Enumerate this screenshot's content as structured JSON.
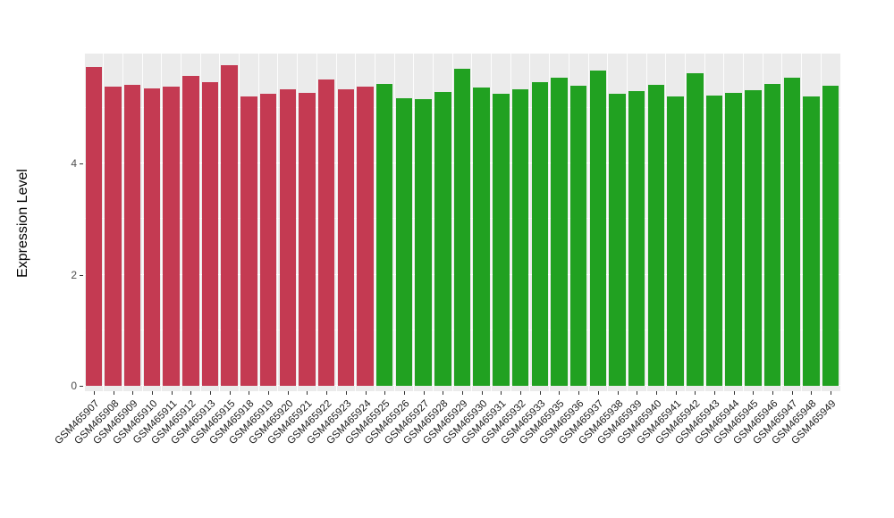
{
  "chart_data": {
    "type": "bar",
    "title": "",
    "xlabel": "",
    "ylabel": "Expression Level",
    "ylim": [
      0,
      5.98
    ],
    "yticks": [
      0,
      2,
      4
    ],
    "yticks_minor": [
      1,
      3,
      5
    ],
    "legend": "none",
    "grid": "on",
    "panel_background": "#EBEBEB",
    "gridline_color": "#FFFFFF",
    "colors": {
      "red": "#C43A52",
      "green": "#21A121"
    },
    "categories": [
      "GSM465907",
      "GSM465908",
      "GSM465909",
      "GSM465910",
      "GSM465911",
      "GSM465912",
      "GSM465913",
      "GSM465915",
      "GSM465918",
      "GSM465919",
      "GSM465920",
      "GSM465921",
      "GSM465922",
      "GSM465923",
      "GSM465924",
      "GSM465925",
      "GSM465926",
      "GSM465927",
      "GSM465928",
      "GSM465929",
      "GSM465930",
      "GSM465931",
      "GSM465932",
      "GSM465933",
      "GSM465935",
      "GSM465936",
      "GSM465937",
      "GSM465938",
      "GSM465939",
      "GSM465940",
      "GSM465941",
      "GSM465942",
      "GSM465943",
      "GSM465944",
      "GSM465945",
      "GSM465946",
      "GSM465947",
      "GSM465948",
      "GSM465949"
    ],
    "values": [
      5.73,
      5.38,
      5.41,
      5.35,
      5.38,
      5.57,
      5.46,
      5.76,
      5.2,
      5.25,
      5.33,
      5.27,
      5.51,
      5.33,
      5.38,
      5.43,
      5.17,
      5.15,
      5.28,
      5.7,
      5.36,
      5.25,
      5.33,
      5.46,
      5.55,
      5.39,
      5.67,
      5.25,
      5.3,
      5.41,
      5.2,
      5.63,
      5.22,
      5.27,
      5.31,
      5.43,
      5.54,
      5.2,
      5.39
    ],
    "bar_groups": [
      "red",
      "red",
      "red",
      "red",
      "red",
      "red",
      "red",
      "red",
      "red",
      "red",
      "red",
      "red",
      "red",
      "red",
      "red",
      "green",
      "green",
      "green",
      "green",
      "green",
      "green",
      "green",
      "green",
      "green",
      "green",
      "green",
      "green",
      "green",
      "green",
      "green",
      "green",
      "green",
      "green",
      "green",
      "green",
      "green",
      "green",
      "green",
      "green"
    ]
  }
}
